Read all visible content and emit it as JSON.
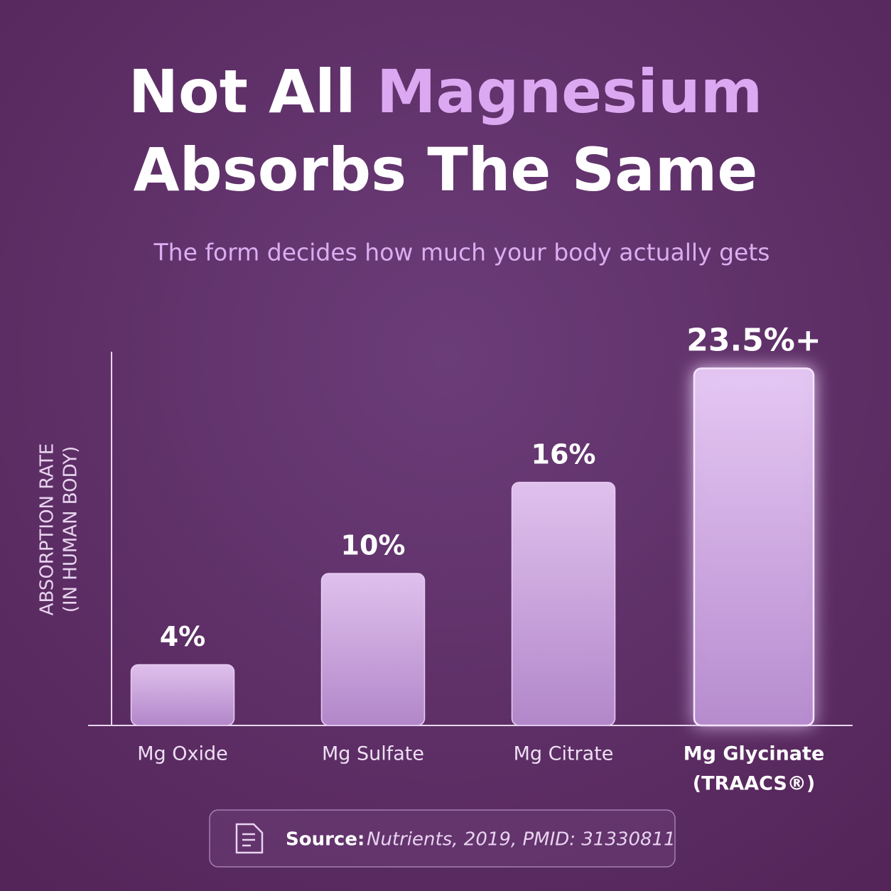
{
  "chart_data": {
    "type": "bar",
    "title": [
      "Not All ",
      "Magnesium",
      "Absorbs The Same"
    ],
    "subtitle": "The form decides how much your body actually gets",
    "y_label": [
      "ABSORPTION RATE",
      "(IN HUMAN BODY)"
    ],
    "categories": [
      [
        "Mg Oxide"
      ],
      [
        "Mg Sulfate"
      ],
      [
        "Mg Citrate"
      ],
      [
        "Mg Glycinate",
        "(TRAACS®)"
      ]
    ],
    "values": [
      4,
      10,
      16,
      23.5
    ],
    "value_labels": [
      "4%",
      "10%",
      "16%",
      "23.5%+"
    ],
    "color": "#d7b4ec",
    "ylim": [
      0,
      24.6
    ],
    "source": {
      "label": "Source:",
      "text": "Nutrients, 2019, PMID: 31330811"
    }
  }
}
